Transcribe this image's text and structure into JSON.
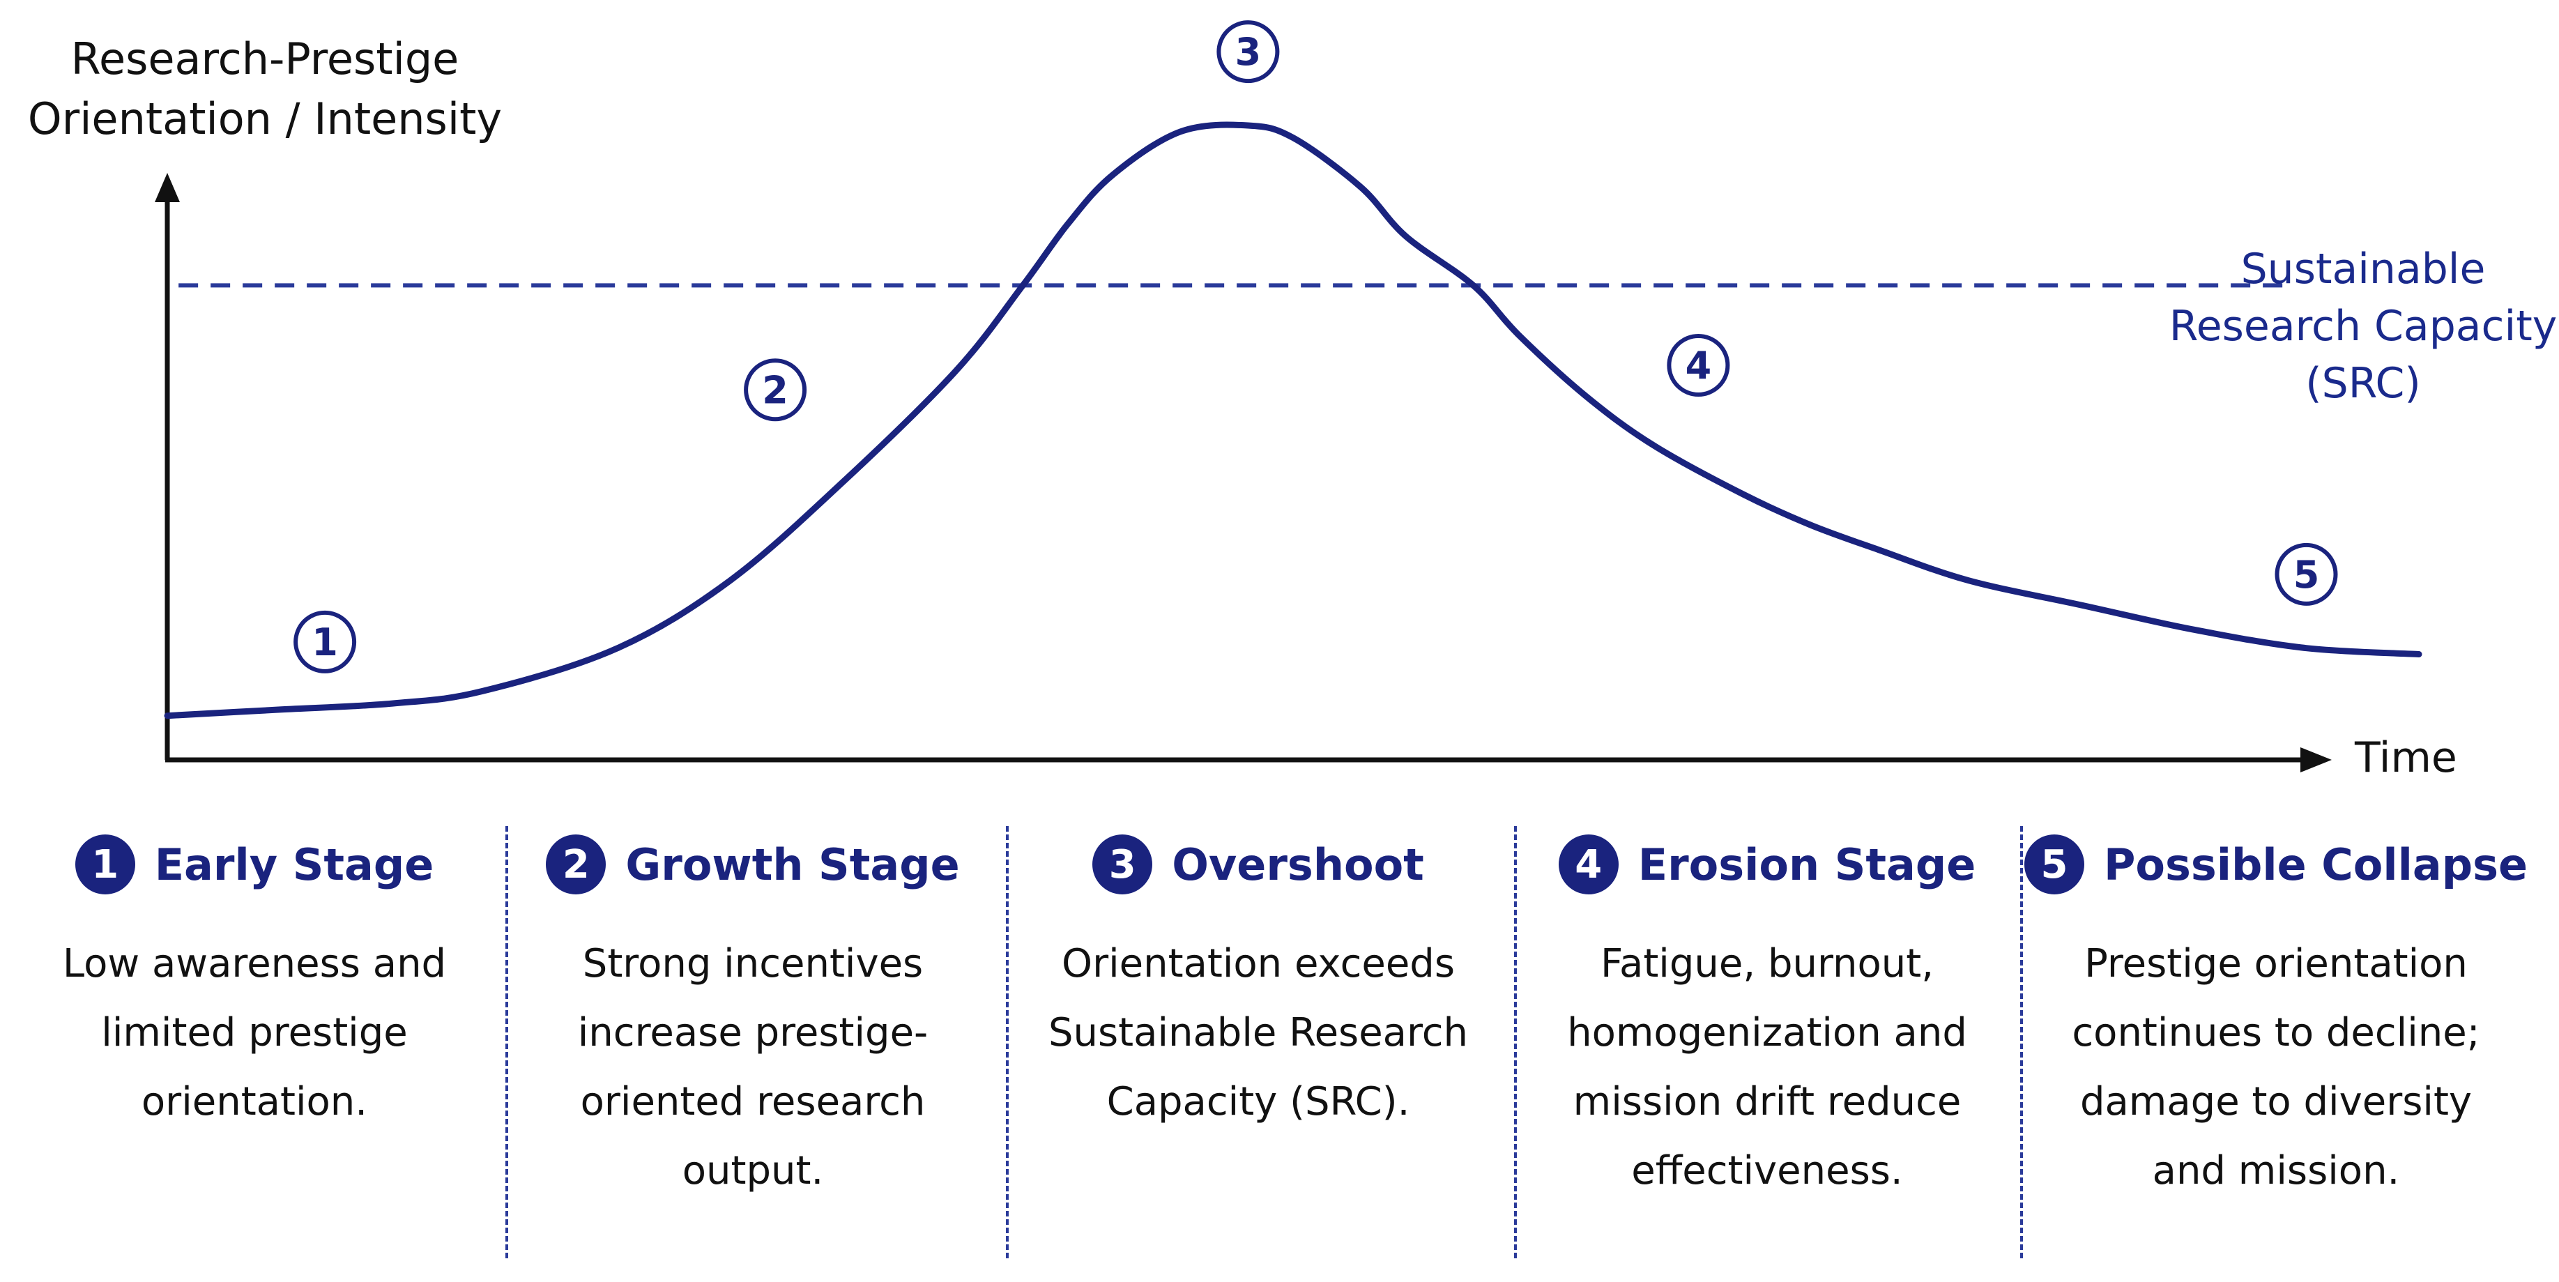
{
  "chart_data": {
    "type": "line",
    "x_axis_label": "Time",
    "y_axis_label": [
      "Research-Prestige",
      "Orientation / Intensity"
    ],
    "reference_line": {
      "label": [
        "Sustainable",
        "Research Capacity",
        "(SRC)"
      ],
      "y": 0.74,
      "style": "dashed"
    },
    "series": [
      {
        "x": [
          0,
          0.05,
          0.1,
          0.14,
          0.2,
          0.25,
          0.3,
          0.35,
          0.38,
          0.4,
          0.42,
          0.45,
          0.48,
          0.5,
          0.53,
          0.55,
          0.58,
          0.6,
          0.63,
          0.66,
          0.7,
          0.73,
          0.76,
          0.8,
          0.85,
          0.9,
          0.95,
          1.0
        ],
        "y": [
          0.04,
          0.05,
          0.06,
          0.08,
          0.15,
          0.26,
          0.42,
          0.6,
          0.74,
          0.84,
          0.92,
          0.99,
          1.0,
          0.98,
          0.9,
          0.82,
          0.74,
          0.66,
          0.56,
          0.48,
          0.4,
          0.35,
          0.31,
          0.26,
          0.22,
          0.18,
          0.15,
          0.14
        ]
      }
    ],
    "markers": [
      {
        "label": "1",
        "x": 0.07,
        "y": 0.16
      },
      {
        "label": "2",
        "x": 0.27,
        "y": 0.57
      },
      {
        "label": "3",
        "x": 0.48,
        "y": 1.12
      },
      {
        "label": "4",
        "x": 0.68,
        "y": 0.61
      },
      {
        "label": "5",
        "x": 0.95,
        "y": 0.27
      }
    ],
    "colors": {
      "curve": "#1a237e",
      "reference": "#2a3a9a",
      "axis": "#111111"
    }
  },
  "stages": [
    {
      "num": "1",
      "title": "Early Stage",
      "lines": [
        "Low awareness and",
        "limited prestige",
        "orientation."
      ]
    },
    {
      "num": "2",
      "title": "Growth Stage",
      "lines": [
        "Strong incentives",
        "increase prestige-",
        "oriented research",
        "output."
      ]
    },
    {
      "num": "3",
      "title": "Overshoot",
      "lines": [
        "Orientation exceeds",
        "Sustainable Research",
        "Capacity (SRC)."
      ]
    },
    {
      "num": "4",
      "title": "Erosion Stage",
      "lines": [
        "Fatigue, burnout,",
        "homogenization and",
        "mission drift reduce",
        "effectiveness."
      ]
    },
    {
      "num": "5",
      "title": "Possible Collapse",
      "lines": [
        "Prestige orientation",
        "continues to decline;",
        "damage to diversity",
        "and mission."
      ]
    }
  ]
}
